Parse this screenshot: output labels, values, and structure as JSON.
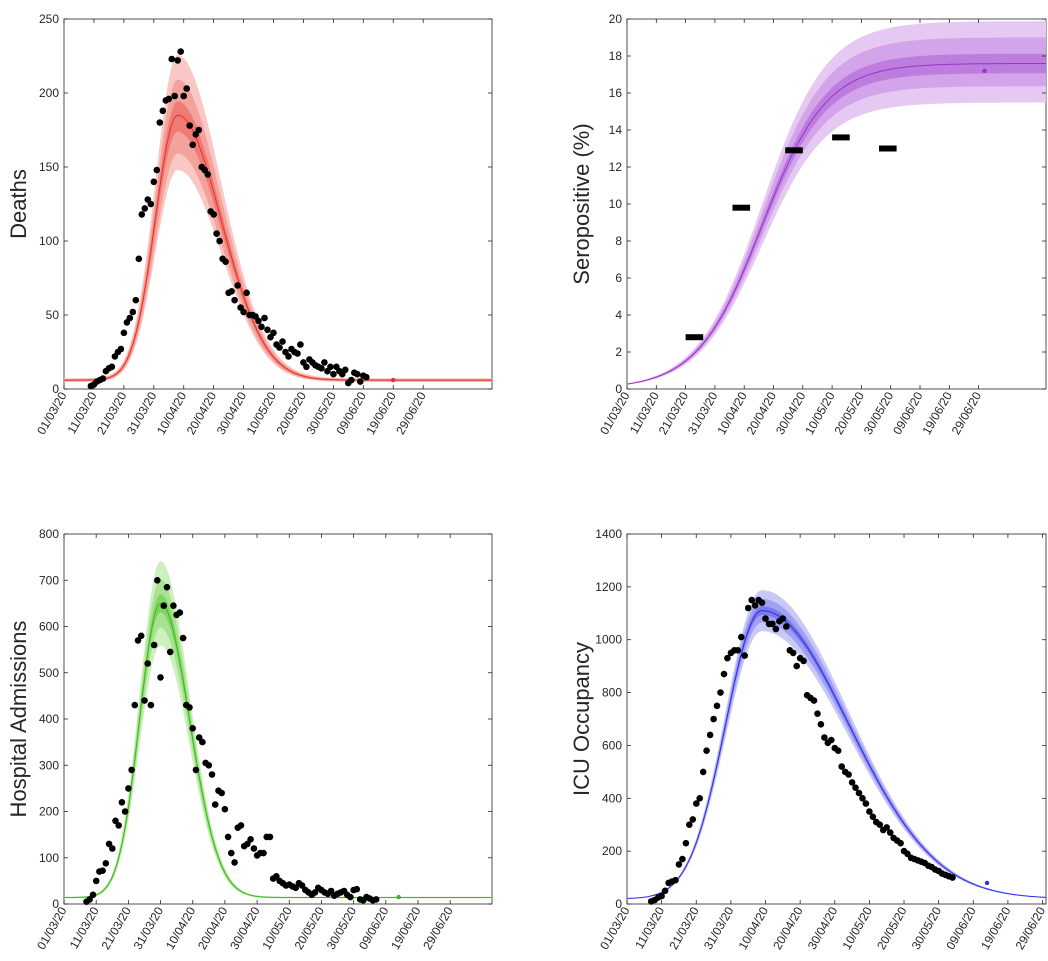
{
  "chart_data": [
    {
      "type": "line",
      "ylabel": "Deaths",
      "ylim": [
        0,
        250
      ],
      "yticks": [
        "0",
        "50",
        "100",
        "150",
        "200",
        "250"
      ],
      "xticks": [
        "01/03/20",
        "11/03/20",
        "21/03/20",
        "31/03/20",
        "10/04/20",
        "20/04/20",
        "30/04/20",
        "10/05/20",
        "20/05/20",
        "30/05/20",
        "09/06/20",
        "19/06/20",
        "29/06/20"
      ],
      "xlim_days": [
        0,
        143
      ],
      "color": "#e8302a",
      "band_colors": [
        "#f9c8c4",
        "#f4a29c",
        "#ee7c74"
      ],
      "grid": false,
      "model": {
        "peak_day": 38,
        "peak_value": 185,
        "rise_width": 7.5,
        "fall_width": 14.5,
        "floor": 6
      },
      "bands": [
        {
          "up": 1.22,
          "lo": 0.8
        },
        {
          "up": 1.13,
          "lo": 0.86
        },
        {
          "up": 1.05,
          "lo": 0.94
        }
      ],
      "observed": [
        [
          9,
          2
        ],
        [
          10,
          3
        ],
        [
          11,
          5
        ],
        [
          12,
          6
        ],
        [
          13,
          7
        ],
        [
          14,
          12
        ],
        [
          15,
          14
        ],
        [
          16,
          15
        ],
        [
          17,
          22
        ],
        [
          18,
          25
        ],
        [
          19,
          27
        ],
        [
          20,
          38
        ],
        [
          21,
          45
        ],
        [
          22,
          48
        ],
        [
          23,
          52
        ],
        [
          24,
          60
        ],
        [
          25,
          88
        ],
        [
          26,
          118
        ],
        [
          27,
          122
        ],
        [
          28,
          128
        ],
        [
          29,
          125
        ],
        [
          30,
          140
        ],
        [
          31,
          148
        ],
        [
          32,
          180
        ],
        [
          33,
          188
        ],
        [
          34,
          195
        ],
        [
          35,
          196
        ],
        [
          36,
          223
        ],
        [
          37,
          198
        ],
        [
          38,
          222
        ],
        [
          39,
          228
        ],
        [
          40,
          198
        ],
        [
          41,
          203
        ],
        [
          42,
          178
        ],
        [
          43,
          165
        ],
        [
          44,
          172
        ],
        [
          45,
          175
        ],
        [
          46,
          150
        ],
        [
          47,
          148
        ],
        [
          48,
          145
        ],
        [
          49,
          120
        ],
        [
          50,
          118
        ],
        [
          51,
          105
        ],
        [
          52,
          100
        ],
        [
          53,
          88
        ],
        [
          54,
          86
        ],
        [
          55,
          65
        ],
        [
          56,
          66
        ],
        [
          57,
          60
        ],
        [
          58,
          70
        ],
        [
          59,
          55
        ],
        [
          60,
          52
        ],
        [
          61,
          65
        ],
        [
          62,
          50
        ],
        [
          63,
          50
        ],
        [
          64,
          49
        ],
        [
          65,
          46
        ],
        [
          66,
          42
        ],
        [
          67,
          48
        ],
        [
          68,
          40
        ],
        [
          69,
          35
        ],
        [
          70,
          38
        ],
        [
          71,
          30
        ],
        [
          72,
          28
        ],
        [
          73,
          32
        ],
        [
          74,
          25
        ],
        [
          75,
          22
        ],
        [
          76,
          27
        ],
        [
          77,
          25
        ],
        [
          78,
          24
        ],
        [
          79,
          30
        ],
        [
          80,
          18
        ],
        [
          81,
          15
        ],
        [
          82,
          20
        ],
        [
          83,
          18
        ],
        [
          84,
          16
        ],
        [
          85,
          15
        ],
        [
          86,
          14
        ],
        [
          87,
          18
        ],
        [
          88,
          12
        ],
        [
          89,
          15
        ],
        [
          90,
          10
        ],
        [
          91,
          15
        ],
        [
          92,
          12
        ],
        [
          93,
          10
        ],
        [
          94,
          13
        ],
        [
          95,
          4
        ],
        [
          96,
          6
        ],
        [
          97,
          11
        ],
        [
          98,
          10
        ],
        [
          99,
          5
        ],
        [
          100,
          9
        ],
        [
          101,
          8
        ]
      ],
      "marker_point": [
        110,
        6
      ]
    },
    {
      "type": "line",
      "ylabel": "Seropositive (%)",
      "ylim": [
        0,
        20
      ],
      "yticks": [
        "0",
        "2",
        "4",
        "6",
        "8",
        "10",
        "12",
        "14",
        "16",
        "18",
        "20"
      ],
      "xticks": [
        "01/03/20",
        "11/03/20",
        "21/03/20",
        "31/03/20",
        "10/04/20",
        "20/04/20",
        "30/04/20",
        "10/05/20",
        "20/05/20",
        "30/05/20",
        "09/06/20",
        "19/06/20",
        "29/06/20"
      ],
      "xlim_days": [
        0,
        143
      ],
      "color": "#9b32c9",
      "band_colors": [
        "#e6c9f3",
        "#d3a4ea",
        "#bd7ddf"
      ],
      "grid": false,
      "model": {
        "max": 17.6,
        "mid_day": 46,
        "width": 11
      },
      "bands": [
        {
          "up": 1.13,
          "lo": 0.88
        },
        {
          "up": 1.08,
          "lo": 0.93
        },
        {
          "up": 1.03,
          "lo": 0.97
        }
      ],
      "observed_bars": [
        [
          20,
          26,
          2.8
        ],
        [
          36,
          42,
          9.8
        ],
        [
          54,
          60,
          12.9
        ],
        [
          70,
          76,
          13.6
        ],
        [
          86,
          92,
          13.0
        ]
      ],
      "marker_point": [
        122,
        17.2
      ]
    },
    {
      "type": "line",
      "ylabel": "Hospital Admissions",
      "ylim": [
        0,
        800
      ],
      "yticks": [
        "0",
        "100",
        "200",
        "300",
        "400",
        "500",
        "600",
        "700",
        "800"
      ],
      "xticks": [
        "01/03/20",
        "11/03/20",
        "21/03/20",
        "31/03/20",
        "10/04/20",
        "20/04/20",
        "30/04/20",
        "10/05/20",
        "20/05/20",
        "30/05/20",
        "09/06/20",
        "19/06/20",
        "29/06/20"
      ],
      "xlim_days": [
        0,
        133
      ],
      "color": "#3cb81e",
      "band_colors": [
        "#cdf0bf",
        "#a6e28f",
        "#7fd463"
      ],
      "grid": false,
      "model": {
        "peak_day": 30,
        "peak_value": 650,
        "rise_width": 6.5,
        "fall_width": 9,
        "floor": 14
      },
      "bands": [
        {
          "up": 1.14,
          "lo": 0.86
        },
        {
          "up": 1.08,
          "lo": 0.92
        },
        {
          "up": 1.03,
          "lo": 0.97
        }
      ],
      "observed": [
        [
          7,
          5
        ],
        [
          8,
          10
        ],
        [
          9,
          20
        ],
        [
          10,
          50
        ],
        [
          11,
          70
        ],
        [
          12,
          72
        ],
        [
          13,
          88
        ],
        [
          14,
          130
        ],
        [
          15,
          120
        ],
        [
          16,
          180
        ],
        [
          17,
          170
        ],
        [
          18,
          220
        ],
        [
          19,
          200
        ],
        [
          20,
          250
        ],
        [
          21,
          290
        ],
        [
          22,
          430
        ],
        [
          23,
          570
        ],
        [
          24,
          580
        ],
        [
          25,
          440
        ],
        [
          26,
          520
        ],
        [
          27,
          430
        ],
        [
          28,
          560
        ],
        [
          29,
          700
        ],
        [
          30,
          490
        ],
        [
          31,
          645
        ],
        [
          32,
          685
        ],
        [
          33,
          545
        ],
        [
          34,
          645
        ],
        [
          35,
          625
        ],
        [
          36,
          630
        ],
        [
          37,
          575
        ],
        [
          38,
          430
        ],
        [
          39,
          425
        ],
        [
          40,
          380
        ],
        [
          41,
          290
        ],
        [
          42,
          360
        ],
        [
          43,
          350
        ],
        [
          44,
          305
        ],
        [
          45,
          300
        ],
        [
          46,
          280
        ],
        [
          47,
          215
        ],
        [
          48,
          245
        ],
        [
          49,
          240
        ],
        [
          50,
          205
        ],
        [
          51,
          145
        ],
        [
          52,
          110
        ],
        [
          53,
          90
        ],
        [
          54,
          165
        ],
        [
          55,
          170
        ],
        [
          56,
          125
        ],
        [
          57,
          130
        ],
        [
          58,
          140
        ],
        [
          59,
          120
        ],
        [
          60,
          105
        ],
        [
          61,
          110
        ],
        [
          62,
          110
        ],
        [
          63,
          145
        ],
        [
          64,
          145
        ],
        [
          65,
          55
        ],
        [
          66,
          60
        ],
        [
          67,
          50
        ],
        [
          68,
          45
        ],
        [
          69,
          40
        ],
        [
          70,
          42
        ],
        [
          71,
          38
        ],
        [
          72,
          35
        ],
        [
          73,
          45
        ],
        [
          74,
          40
        ],
        [
          75,
          30
        ],
        [
          76,
          25
        ],
        [
          77,
          20
        ],
        [
          78,
          25
        ],
        [
          79,
          35
        ],
        [
          80,
          30
        ],
        [
          81,
          25
        ],
        [
          82,
          22
        ],
        [
          83,
          28
        ],
        [
          84,
          18
        ],
        [
          85,
          22
        ],
        [
          86,
          25
        ],
        [
          87,
          28
        ],
        [
          88,
          20
        ],
        [
          89,
          15
        ],
        [
          90,
          30
        ],
        [
          91,
          32
        ],
        [
          92,
          10
        ],
        [
          93,
          8
        ],
        [
          94,
          15
        ],
        [
          95,
          12
        ],
        [
          96,
          8
        ],
        [
          97,
          10
        ]
      ],
      "marker_point": [
        104,
        15
      ]
    },
    {
      "type": "line",
      "ylabel": "ICU Occupancy",
      "ylim": [
        0,
        1400
      ],
      "yticks": [
        "0",
        "200",
        "400",
        "600",
        "800",
        "1000",
        "1200",
        "1400"
      ],
      "xticks": [
        "01/03/20",
        "11/03/20",
        "21/03/20",
        "31/03/20",
        "10/04/20",
        "20/04/20",
        "30/04/20",
        "10/05/20",
        "20/05/20",
        "30/05/20",
        "09/06/20",
        "19/06/20",
        "29/06/20"
      ],
      "xlim_days": [
        0,
        121
      ],
      "color": "#2f2ee6",
      "band_colors": [
        "#c9c9f8",
        "#a1a1f2",
        "#7a7aec"
      ],
      "grid": false,
      "model": {
        "peak_day": 39,
        "peak_value": 1110,
        "rise_width": 10.5,
        "fall_width": 25,
        "floor": 20
      },
      "bands": [
        {
          "up": 1.07,
          "lo": 0.93
        },
        {
          "up": 1.04,
          "lo": 0.96
        },
        {
          "up": 1.015,
          "lo": 0.985
        }
      ],
      "observed": [
        [
          7,
          10
        ],
        [
          8,
          15
        ],
        [
          9,
          25
        ],
        [
          10,
          30
        ],
        [
          11,
          50
        ],
        [
          12,
          80
        ],
        [
          13,
          85
        ],
        [
          14,
          90
        ],
        [
          15,
          150
        ],
        [
          16,
          170
        ],
        [
          17,
          230
        ],
        [
          18,
          300
        ],
        [
          19,
          320
        ],
        [
          20,
          380
        ],
        [
          21,
          400
        ],
        [
          22,
          500
        ],
        [
          23,
          580
        ],
        [
          24,
          640
        ],
        [
          25,
          700
        ],
        [
          26,
          750
        ],
        [
          27,
          800
        ],
        [
          28,
          870
        ],
        [
          29,
          930
        ],
        [
          30,
          950
        ],
        [
          31,
          960
        ],
        [
          32,
          960
        ],
        [
          33,
          1010
        ],
        [
          34,
          940
        ],
        [
          35,
          1120
        ],
        [
          36,
          1150
        ],
        [
          37,
          1130
        ],
        [
          38,
          1150
        ],
        [
          39,
          1140
        ],
        [
          40,
          1080
        ],
        [
          41,
          1060
        ],
        [
          42,
          1060
        ],
        [
          43,
          1040
        ],
        [
          44,
          1070
        ],
        [
          45,
          1080
        ],
        [
          46,
          1050
        ],
        [
          47,
          960
        ],
        [
          48,
          950
        ],
        [
          49,
          900
        ],
        [
          50,
          930
        ],
        [
          51,
          920
        ],
        [
          52,
          790
        ],
        [
          53,
          780
        ],
        [
          54,
          770
        ],
        [
          55,
          720
        ],
        [
          56,
          680
        ],
        [
          57,
          630
        ],
        [
          58,
          610
        ],
        [
          59,
          620
        ],
        [
          60,
          590
        ],
        [
          61,
          580
        ],
        [
          62,
          520
        ],
        [
          63,
          500
        ],
        [
          64,
          490
        ],
        [
          65,
          460
        ],
        [
          66,
          440
        ],
        [
          67,
          420
        ],
        [
          68,
          400
        ],
        [
          69,
          380
        ],
        [
          70,
          350
        ],
        [
          71,
          330
        ],
        [
          72,
          310
        ],
        [
          73,
          300
        ],
        [
          74,
          280
        ],
        [
          75,
          290
        ],
        [
          76,
          270
        ],
        [
          77,
          250
        ],
        [
          78,
          240
        ],
        [
          79,
          230
        ],
        [
          80,
          200
        ],
        [
          81,
          190
        ],
        [
          82,
          175
        ],
        [
          83,
          170
        ],
        [
          84,
          165
        ],
        [
          85,
          160
        ],
        [
          86,
          155
        ],
        [
          87,
          145
        ],
        [
          88,
          140
        ],
        [
          89,
          130
        ],
        [
          90,
          125
        ],
        [
          91,
          115
        ],
        [
          92,
          110
        ],
        [
          93,
          105
        ],
        [
          94,
          100
        ]
      ],
      "marker_point": [
        104,
        80
      ]
    }
  ]
}
